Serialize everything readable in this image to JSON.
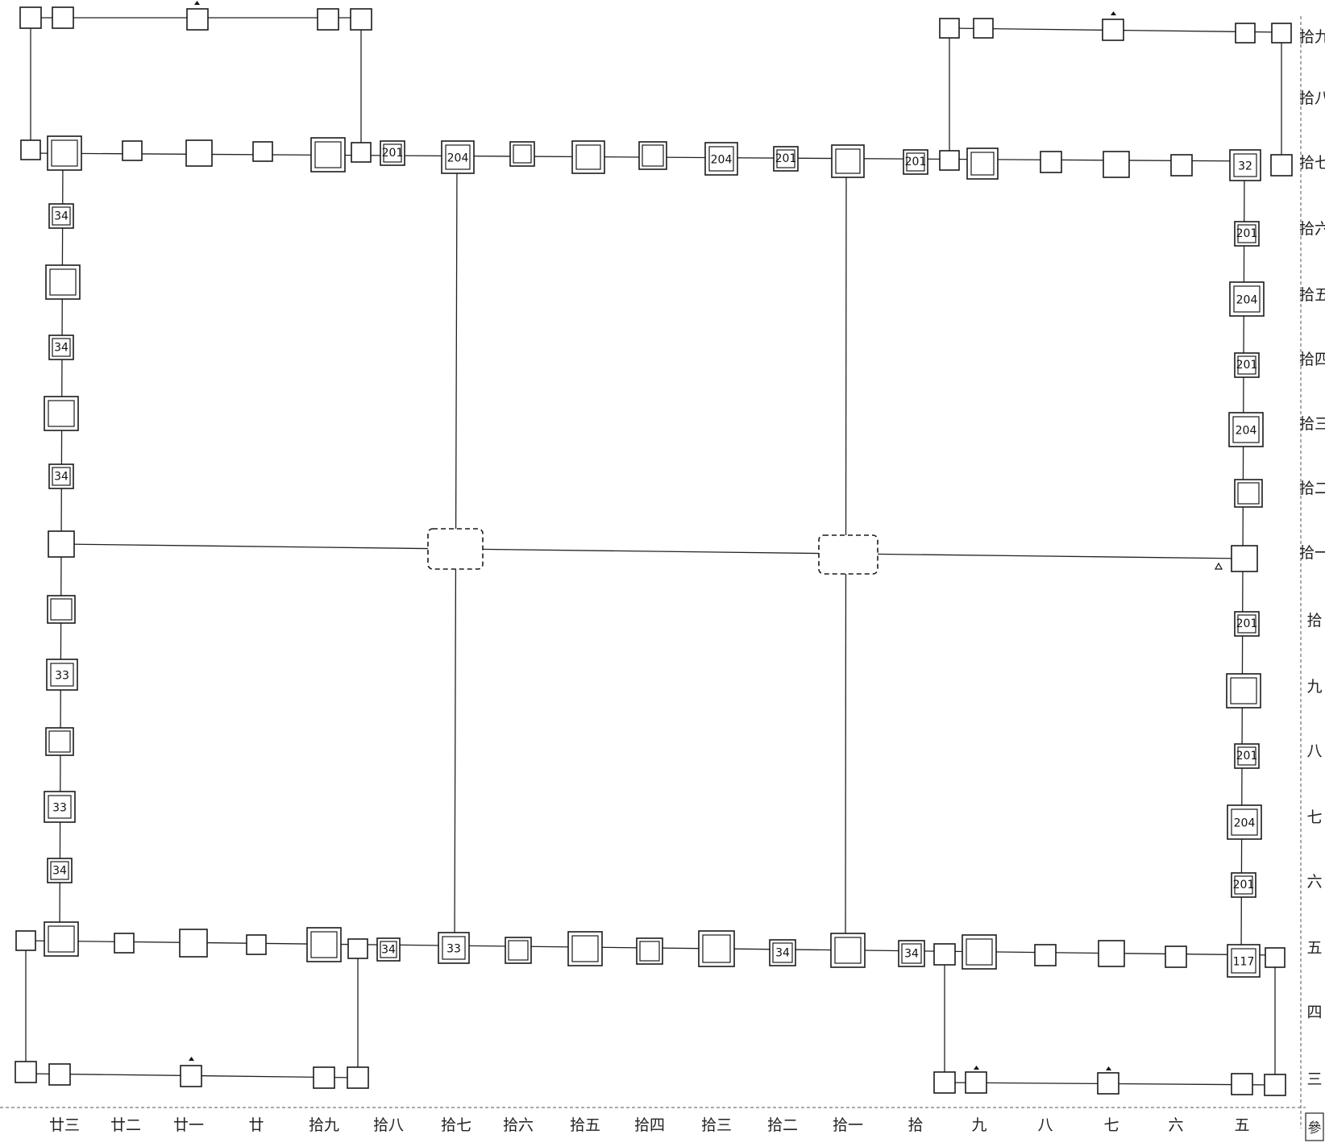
{
  "unit_labels": {
    "u201": "201",
    "u204": "204",
    "u34": "34",
    "u33": "33",
    "u32": "32",
    "u117": "117"
  },
  "bottom_axis": [
    "廿三",
    "廿二",
    "廿一",
    "廿",
    "拾九",
    "拾八",
    "拾七",
    "拾六",
    "拾五",
    "拾四",
    "拾三",
    "拾二",
    "拾一",
    "拾",
    "九",
    "八",
    "七",
    "六",
    "五"
  ],
  "right_axis": [
    "拾九",
    "拾八",
    "拾七",
    "拾六",
    "拾五",
    "拾四",
    "拾三",
    "拾二",
    "拾一",
    "拾",
    "九",
    "八",
    "七",
    "六",
    "五",
    "四",
    "三"
  ],
  "corner_label": "參"
}
